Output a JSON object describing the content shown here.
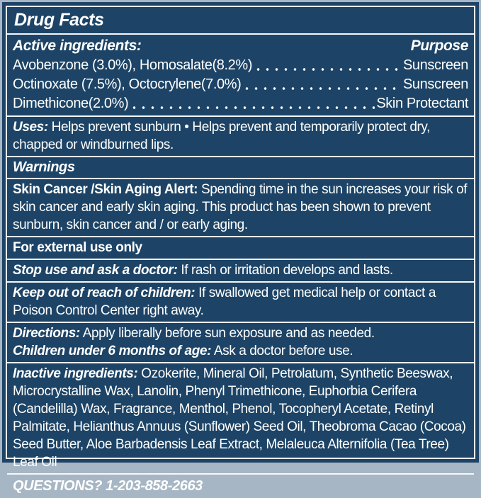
{
  "colors": {
    "panel_background": "#1d4466",
    "rule_and_text": "#ffffff",
    "outer_edge": "#a7b6c4"
  },
  "title": "Drug Facts",
  "active_ingredients": {
    "heading": "Active ingredients:",
    "purpose_heading": "Purpose",
    "rows": [
      {
        "ingredient": "Avobenzone (3.0%), Homosalate(8.2%)",
        "purpose": "Sunscreen"
      },
      {
        "ingredient": "Octinoxate (7.5%), Octocrylene(7.0%)",
        "purpose": "Sunscreen"
      },
      {
        "ingredient": "Dimethicone(2.0%)",
        "purpose": "Skin Protectant"
      }
    ]
  },
  "uses": {
    "label": "Uses:",
    "text": "Helps prevent sunburn • Helps prevent and temporarily protect dry, chapped or windburned lips."
  },
  "warnings_heading": "Warnings",
  "skin_cancer_alert": {
    "label": "Skin Cancer /Skin Aging Alert:",
    "text": "Spending time in the sun increases your risk of skin cancer and early skin aging. This product has been shown to prevent sunburn, skin cancer and / or early aging."
  },
  "external_use": "For external use only",
  "stop_use": {
    "label": "Stop use and ask a doctor:",
    "text": "If rash or irritation develops and lasts."
  },
  "keep_out": {
    "label": "Keep out of reach of children:",
    "text": "If swallowed get medical help or contact a Poison Control Center right away."
  },
  "directions": {
    "label": "Directions:",
    "text": "Apply liberally before sun exposure and as needed."
  },
  "children": {
    "label": "Children under 6 months of age:",
    "text": "Ask a doctor before use."
  },
  "inactive_ingredients": {
    "label": "Inactive ingredients:",
    "text": "Ozokerite, Mineral Oil, Petrolatum, Synthetic Beeswax, Microcrystalline Wax, Lanolin, Phenyl Trimethicone, Euphorbia Cerifera (Candelilla) Wax, Fragrance, Menthol, Phenol, Tocopheryl Acetate, Retinyl Palmitate, Helianthus Annuus (Sunflower) Seed Oil, Theobroma Cacao (Cocoa) Seed Butter, Aloe Barbadensis Leaf Extract, Melaleuca Alternifolia (Tea Tree) Leaf Oil"
  },
  "questions": "QUESTIONS? 1-203-858-2663"
}
